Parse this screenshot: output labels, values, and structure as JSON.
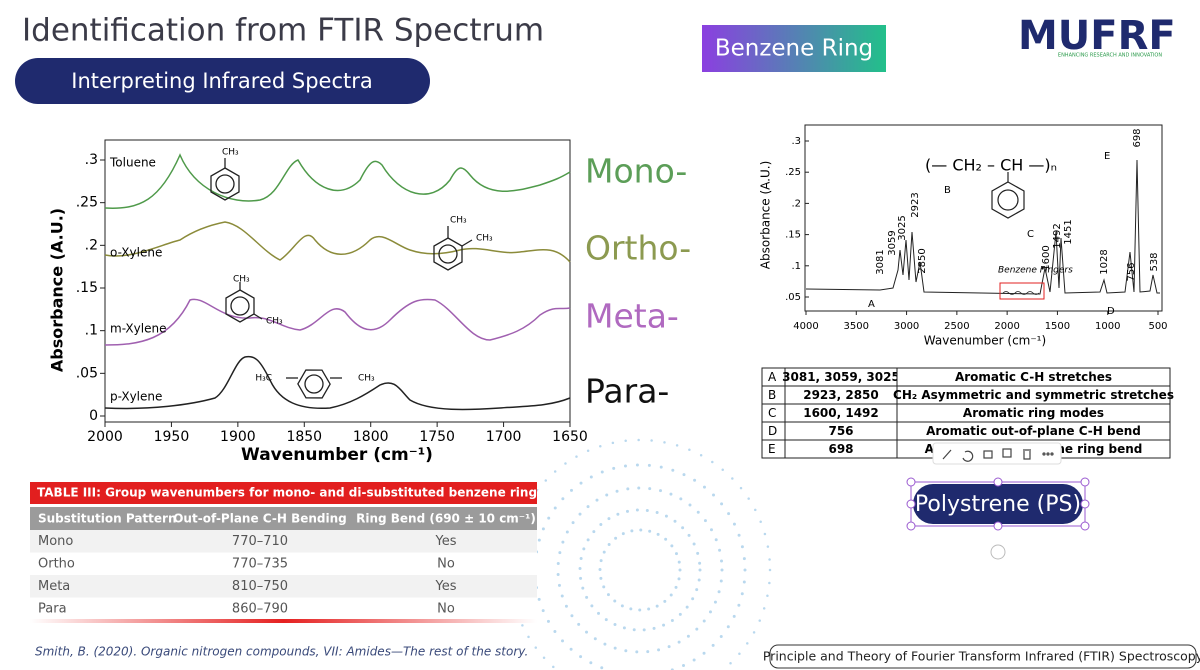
{
  "header": {
    "title": "Identification from FTIR Spectrum",
    "subtitle": "Interpreting Infrared Spectra",
    "badge": "Benzene Ring",
    "logo": "MUFRF",
    "logo_tagline": "ENHANCING RESEARCH AND INNOVATION"
  },
  "left_spectrum": {
    "y_label": "Absorbance (A.U.)",
    "x_label": "Wavenumber (cm⁻¹)",
    "xticks": [
      "2000",
      "1950",
      "1900",
      "1850",
      "1800",
      "1750",
      "1700",
      "1650"
    ],
    "yticks": [
      ".3",
      ".25",
      ".2",
      ".15",
      ".1",
      ".05",
      "0"
    ],
    "traces": [
      {
        "name": "Toluene",
        "tag": "Mono-"
      },
      {
        "name": "o-Xylene",
        "tag": "Ortho-"
      },
      {
        "name": "m-Xylene",
        "tag": "Meta-"
      },
      {
        "name": "p-Xylene",
        "tag": "Para-"
      }
    ],
    "structure_labels": [
      "CH₃",
      "CH₃",
      "CH₃",
      "CH₃",
      "CH₃",
      "H₃C",
      "CH₃"
    ]
  },
  "right_spectrum": {
    "y_label": "Absorbance (A.U.)",
    "x_label": "Wavenumber (cm⁻¹)",
    "formula": "(— CH₂ – CH —)ₙ",
    "xticks": [
      "4000",
      "3500",
      "3000",
      "2500",
      "2000",
      "1500",
      "1000",
      "500"
    ],
    "yticks": [
      ".3",
      ".25",
      ".2",
      ".15",
      ".1",
      ".05"
    ],
    "peaks": [
      "3081",
      "3059",
      "3025",
      "2923",
      "2850",
      "1600",
      "1492",
      "1451",
      "1028",
      "756",
      "698",
      "538"
    ],
    "letters": [
      "A",
      "B",
      "C",
      "D",
      "E"
    ],
    "note": "Benzene Fingers"
  },
  "assignment_table": {
    "rows": [
      [
        "A",
        "3081, 3059, 3025",
        "Aromatic C-H stretches"
      ],
      [
        "B",
        "2923, 2850",
        "CH₂ Asymmetric and symmetric stretches"
      ],
      [
        "C",
        "1600, 1492",
        "Aromatic ring modes"
      ],
      [
        "D",
        "756",
        "Aromatic out-of-plane C-H bend"
      ],
      [
        "E",
        "698",
        "Aromatic out-of-plane ring bend"
      ]
    ]
  },
  "group_table": {
    "title": "TABLE III: Group wavenumbers for mono- and di-substituted benzene rings",
    "header": [
      "Substitution Pattern",
      "Out-of-Plane C-H Bending",
      "Ring Bend (690 ± 10 cm⁻¹)"
    ],
    "rows": [
      [
        "Mono",
        "770–710",
        "Yes"
      ],
      [
        "Ortho",
        "770–735",
        "No"
      ],
      [
        "Meta",
        "810–750",
        "Yes"
      ],
      [
        "Para",
        "860–790",
        "No"
      ]
    ]
  },
  "button": "Polystrene (PS)",
  "citation": "Smith, B. (2020). Organic nitrogen compounds, VII: Amides—The rest of the story.",
  "footer": "Principle and Theory of Fourier Transform Infrared (FTIR) Spectroscopy"
}
